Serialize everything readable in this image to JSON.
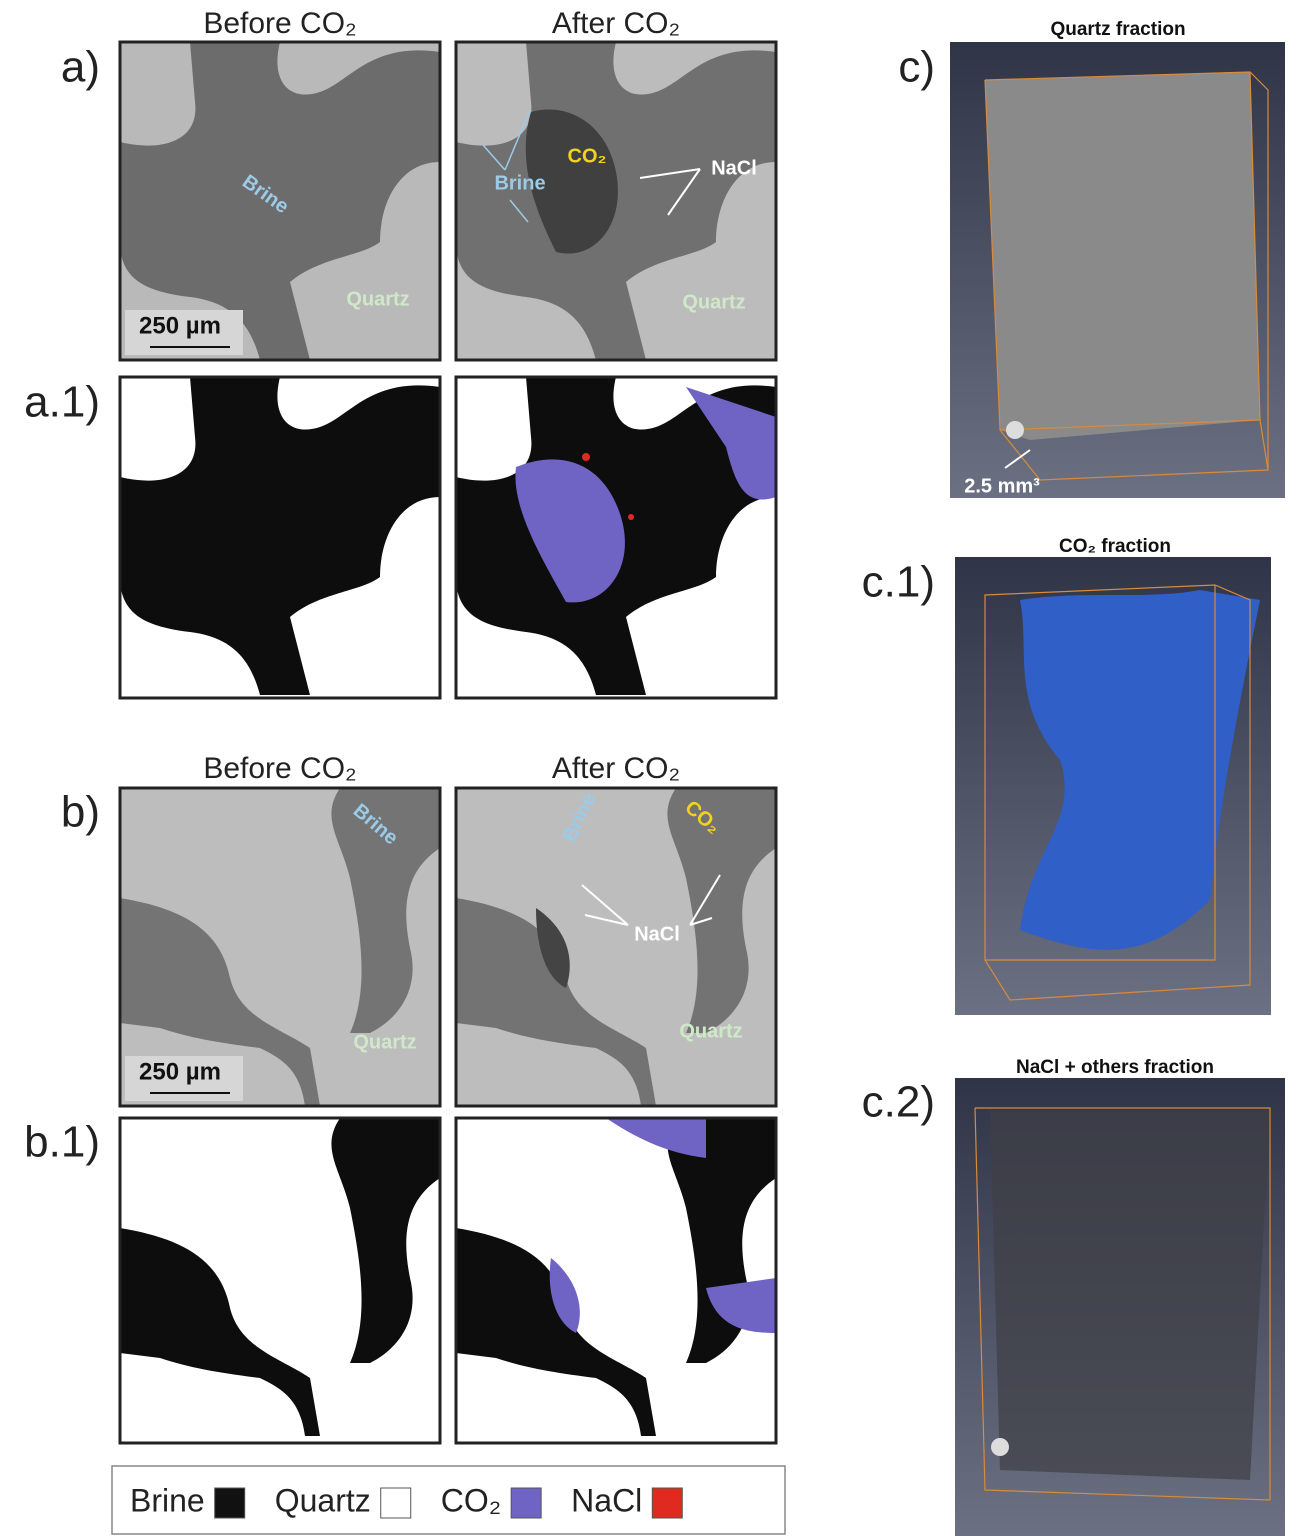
{
  "panels": {
    "a": {
      "label": "a)",
      "before_header": "Before CO₂",
      "after_header": "After CO₂",
      "before_annotations": [
        "Brine",
        "Quartz"
      ],
      "scale_bar": "250 µm",
      "after_annotations": [
        "Brine",
        "CO₂",
        "NaCl",
        "Quartz"
      ]
    },
    "a1": {
      "label": "a.1)"
    },
    "b": {
      "label": "b)",
      "before_header": "Before CO₂",
      "after_header": "After CO₂",
      "before_annotations": [
        "Brine",
        "Quartz"
      ],
      "scale_bar": "250 µm",
      "after_annotations": [
        "Brine",
        "CO₂",
        "NaCl",
        "Quartz"
      ]
    },
    "b1": {
      "label": "b.1)"
    }
  },
  "volumes": [
    {
      "label": "c)",
      "title": "Quartz fraction",
      "annotation": "2.5 mm³"
    },
    {
      "label": "c.1)",
      "title": "CO₂ fraction"
    },
    {
      "label": "c.2)",
      "title": "NaCl + others fraction"
    }
  ],
  "legend": [
    {
      "name": "Brine",
      "color": "#111111"
    },
    {
      "name": "Quartz",
      "color": "#ffffff"
    },
    {
      "name": "CO₂",
      "color": "#6f63c4"
    },
    {
      "name": "NaCl",
      "color": "#e02a1f"
    }
  ]
}
